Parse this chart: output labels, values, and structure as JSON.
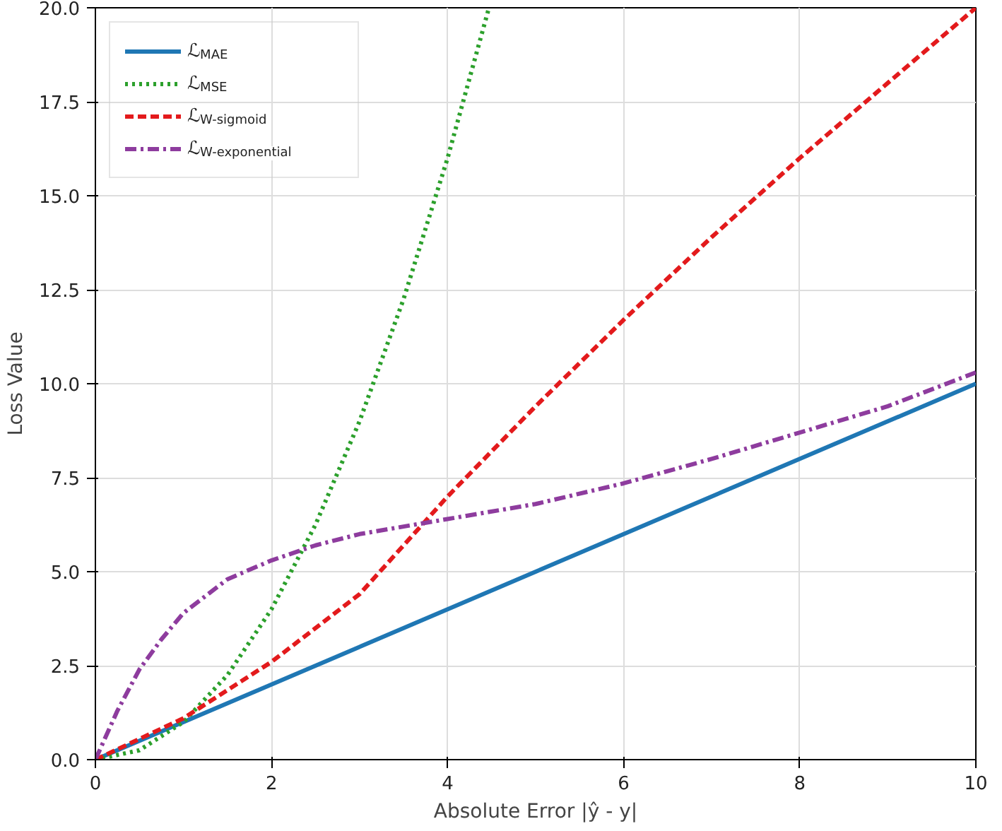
{
  "chart_data": {
    "type": "line",
    "xlabel": "Absolute Error |ŷ - y|",
    "ylabel": "Loss Value",
    "xlim": [
      0,
      10
    ],
    "ylim": [
      0,
      20
    ],
    "xticks": [
      0,
      2,
      4,
      6,
      8,
      10
    ],
    "yticks": [
      {
        "value": 0,
        "label": "0.0"
      },
      {
        "value": 2.5,
        "label": "2.5"
      },
      {
        "value": 5,
        "label": "5.0"
      },
      {
        "value": 7.5,
        "label": "7.5"
      },
      {
        "value": 10,
        "label": "10.0"
      },
      {
        "value": 12.5,
        "label": "12.5"
      },
      {
        "value": 15,
        "label": "15.0"
      },
      {
        "value": 17.5,
        "label": "17.5"
      },
      {
        "value": 20,
        "label": "20.0"
      }
    ],
    "grid": true,
    "legend": "top left",
    "marker": "none",
    "series": [
      {
        "name": "ℒ$_{MAE}$",
        "color": "#1f77b4",
        "line_style": "solid",
        "x": [
          0,
          10
        ],
        "values": [
          0,
          10
        ]
      },
      {
        "name": "ℒ$_{MSE}$",
        "color": "#2ca02c",
        "line_style": "dotted",
        "x": [
          0,
          0.5,
          1,
          1.5,
          2,
          2.5,
          3,
          3.5,
          4,
          4.47
        ],
        "values": [
          0,
          0.25,
          1,
          2.25,
          4,
          6.25,
          9,
          12.25,
          16,
          20
        ]
      },
      {
        "name": "ℒ$_{W-sigmoid}$",
        "color": "#e31a1c",
        "line_style": "dashed",
        "x": [
          0,
          1,
          2,
          3,
          4,
          5,
          6,
          7,
          8,
          9,
          10
        ],
        "values": [
          0,
          1.1,
          2.6,
          4.4,
          7.0,
          9.4,
          11.7,
          13.9,
          16.0,
          18.0,
          20.0
        ]
      },
      {
        "name": "ℒ$_{W-exponential}$",
        "color": "#8e3c9e",
        "line_style": "dashdot",
        "x": [
          0,
          0.25,
          0.5,
          0.75,
          1,
          1.5,
          2,
          2.5,
          3,
          4,
          5,
          6,
          7,
          8,
          9,
          10
        ],
        "values": [
          0,
          1.3,
          2.4,
          3.2,
          3.9,
          4.8,
          5.3,
          5.7,
          6.0,
          6.4,
          6.8,
          7.35,
          8.0,
          8.7,
          9.4,
          10.3
        ]
      }
    ]
  }
}
